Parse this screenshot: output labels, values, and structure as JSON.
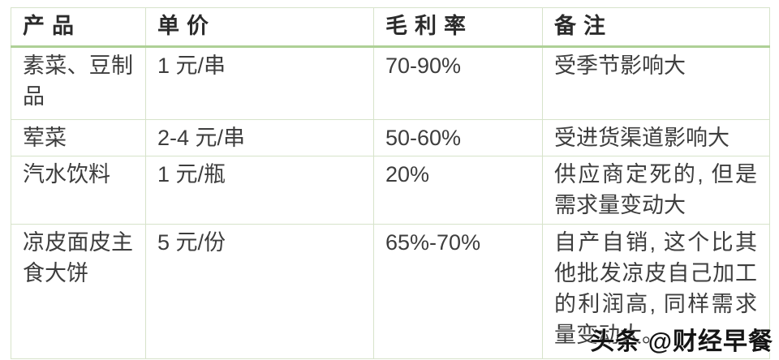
{
  "table": {
    "headers": {
      "product": "产品",
      "price": "单价",
      "margin": "毛利率",
      "note": "备注"
    },
    "rows": [
      {
        "product": "素菜、豆制品",
        "price": "1 元/串",
        "margin": "70-90%",
        "note": "受季节影响大"
      },
      {
        "product": "荤菜",
        "price": "2-4 元/串",
        "margin": "50-60%",
        "note": "受进货渠道影响大"
      },
      {
        "product": "汽水饮料",
        "price": "1 元/瓶",
        "margin": "20%",
        "note": "供应商定死的, 但是需求量变动大"
      },
      {
        "product": "凉皮面皮主食大饼",
        "price": "5 元/份",
        "margin": "65%-70%",
        "note": "自产自销, 这个比其他批发凉皮自己加工的利润高, 同样需求量变动大。"
      }
    ]
  },
  "watermark": {
    "text": "头条 @财经早餐"
  },
  "colors": {
    "header_separator": "#aed096",
    "grid_border": "#d7e3ca",
    "body_text": "#3d3d3d",
    "header_text": "#2b2b2b",
    "watermark_text": "#141414",
    "background": "#ffffff"
  }
}
